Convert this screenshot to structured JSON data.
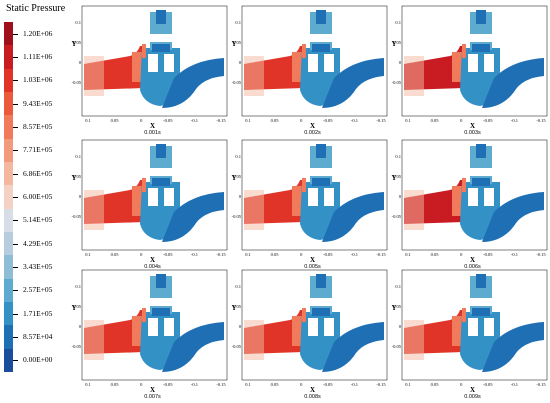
{
  "legend": {
    "title": "Static Pressure",
    "labels": [
      "1.20E+06",
      "1.11E+06",
      "1.03E+06",
      "9.43E+05",
      "8.57E+05",
      "7.71E+05",
      "6.86E+05",
      "6.00E+05",
      "5.14E+05",
      "4.29E+05",
      "3.43E+05",
      "2.57E+05",
      "1.71E+05",
      "8.57E+04",
      "0.00E+00"
    ],
    "colors": [
      "#a0101c",
      "#c81c22",
      "#e03428",
      "#ec5a3e",
      "#f07a5a",
      "#f29a7c",
      "#f4b8a0",
      "#f3d2c3",
      "#d7dee8",
      "#b6cde0",
      "#8fbdd6",
      "#5eabd0",
      "#3391c6",
      "#1f6fb4",
      "#1a4e9c"
    ]
  },
  "panels": [
    {
      "caption": "0.001s",
      "intensity": 0.7
    },
    {
      "caption": "0.002s",
      "intensity": 0.65
    },
    {
      "caption": "0.003s",
      "intensity": 0.85
    },
    {
      "caption": "0.004s",
      "intensity": 0.68
    },
    {
      "caption": "0.005s",
      "intensity": 0.66
    },
    {
      "caption": "0.006s",
      "intensity": 0.9
    },
    {
      "caption": "0.007s",
      "intensity": 0.72
    },
    {
      "caption": "0.008s",
      "intensity": 0.66
    },
    {
      "caption": "0.009s",
      "intensity": 0.68
    }
  ],
  "axes": {
    "xlabel": "X",
    "ylabel": "Y",
    "xticks": [
      "0.1",
      "0.05",
      "0",
      "-0.05",
      "-0.1",
      "-0.15"
    ],
    "yticks": [
      "0.1",
      "0.05",
      "0",
      "-0.05"
    ]
  }
}
